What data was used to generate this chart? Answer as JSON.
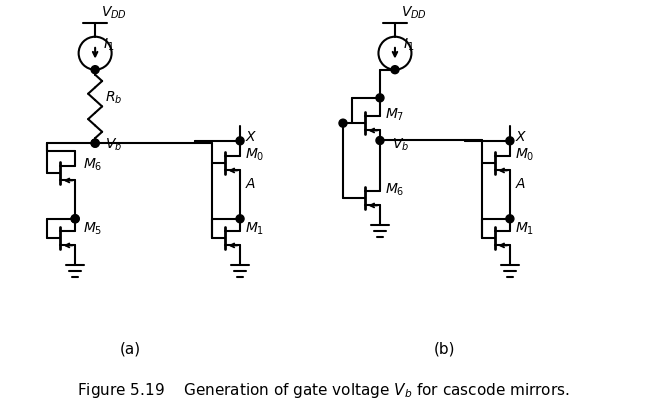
{
  "figure_width": 6.47,
  "figure_height": 4.08,
  "dpi": 100,
  "background_color": "#ffffff",
  "line_color": "#000000",
  "line_width": 1.5,
  "caption": "Figure 5.19    Generation of gate voltage $V_b$ for cascode mirrors.",
  "caption_fontsize": 11,
  "label_a": "(a)",
  "label_b": "(b)",
  "sub_label_fontsize": 11
}
